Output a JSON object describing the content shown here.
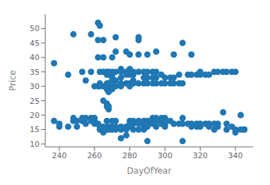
{
  "chart_data": {
    "type": "scatter",
    "xlabel": "DayOfYear",
    "ylabel": "Price",
    "color": "#1f77b4",
    "grid": false,
    "xlim": [
      232,
      350
    ],
    "ylim": [
      9,
      55
    ],
    "xticks": [
      240,
      260,
      280,
      300,
      320,
      340
    ],
    "yticks": [
      10,
      15,
      20,
      25,
      30,
      35,
      40,
      45,
      50
    ],
    "x": [
      237,
      237,
      240,
      240,
      245,
      245,
      248,
      248,
      248,
      250,
      250,
      253,
      253,
      253,
      255,
      255,
      255,
      258,
      258,
      258,
      258,
      260,
      260,
      260,
      260,
      262,
      262,
      262,
      262,
      262,
      263,
      263,
      263,
      263,
      263,
      263,
      265,
      265,
      265,
      265,
      265,
      265,
      265,
      265,
      267,
      267,
      267,
      267,
      267,
      267,
      267,
      267,
      267,
      267,
      268,
      268,
      268,
      268,
      268,
      268,
      268,
      268,
      268,
      270,
      270,
      270,
      270,
      270,
      270,
      270,
      270,
      270,
      270,
      272,
      272,
      272,
      272,
      272,
      272,
      272,
      272,
      275,
      275,
      275,
      275,
      275,
      275,
      275,
      275,
      278,
      278,
      278,
      278,
      278,
      278,
      278,
      280,
      280,
      280,
      280,
      280,
      280,
      280,
      280,
      280,
      282,
      282,
      282,
      282,
      282,
      282,
      282,
      285,
      285,
      285,
      285,
      285,
      285,
      285,
      285,
      288,
      288,
      288,
      288,
      288,
      288,
      288,
      290,
      290,
      290,
      290,
      290,
      290,
      290,
      290,
      293,
      293,
      293,
      293,
      293,
      293,
      295,
      295,
      295,
      295,
      295,
      295,
      295,
      298,
      298,
      298,
      298,
      298,
      300,
      300,
      300,
      300,
      300,
      300,
      303,
      303,
      303,
      305,
      305,
      305,
      305,
      308,
      308,
      308,
      310,
      310,
      310,
      310,
      310,
      313,
      313,
      315,
      315,
      315,
      315,
      318,
      318,
      318,
      320,
      320,
      320,
      320,
      323,
      323,
      325,
      325,
      325,
      328,
      328,
      328,
      330,
      330,
      330,
      333,
      333,
      335,
      335,
      335,
      338,
      338,
      340,
      340,
      340,
      343,
      343,
      345,
      345,
      345
    ],
    "values": [
      38,
      18,
      16,
      17,
      34,
      16,
      48,
      18,
      19,
      18,
      16,
      35,
      19,
      18,
      32,
      19,
      17,
      48,
      35,
      19,
      18,
      30,
      19,
      18,
      17,
      52,
      46,
      40,
      30,
      17,
      51,
      35,
      31,
      30,
      16,
      15,
      46,
      40,
      35,
      30,
      25,
      16,
      15,
      14,
      35,
      34,
      31,
      30,
      29,
      24,
      23,
      18,
      16,
      15,
      35,
      34,
      31,
      30,
      28,
      23,
      22,
      16,
      15,
      40,
      35,
      34,
      33,
      32,
      30,
      29,
      18,
      16,
      15,
      47,
      42,
      35,
      32,
      30,
      18,
      16,
      15,
      36,
      35,
      33,
      31,
      30,
      16,
      15,
      12,
      42,
      35,
      34,
      31,
      16,
      15,
      13,
      41,
      36,
      35,
      34,
      31,
      30,
      18,
      17,
      16,
      35,
      34,
      32,
      31,
      18,
      17,
      15,
      47,
      46,
      41,
      35,
      31,
      18,
      17,
      15,
      35,
      33,
      31,
      18,
      17,
      16,
      15,
      41,
      35,
      33,
      31,
      18,
      17,
      16,
      11,
      35,
      33,
      31,
      19,
      18,
      17,
      42,
      35,
      33,
      31,
      19,
      18,
      16,
      34,
      31,
      19,
      18,
      17,
      33,
      31,
      19,
      18,
      17,
      16,
      33,
      31,
      18,
      41,
      33,
      31,
      17,
      34,
      31,
      17,
      45,
      31,
      19,
      17,
      11,
      34,
      17,
      41,
      34,
      17,
      16,
      34,
      17,
      16,
      35,
      34,
      17,
      16,
      34,
      17,
      34,
      17,
      16,
      35,
      17,
      15,
      35,
      17,
      16,
      35,
      21,
      35,
      17,
      15,
      35,
      16,
      35,
      15,
      14,
      20,
      15,
      15,
      15,
      15
    ]
  }
}
